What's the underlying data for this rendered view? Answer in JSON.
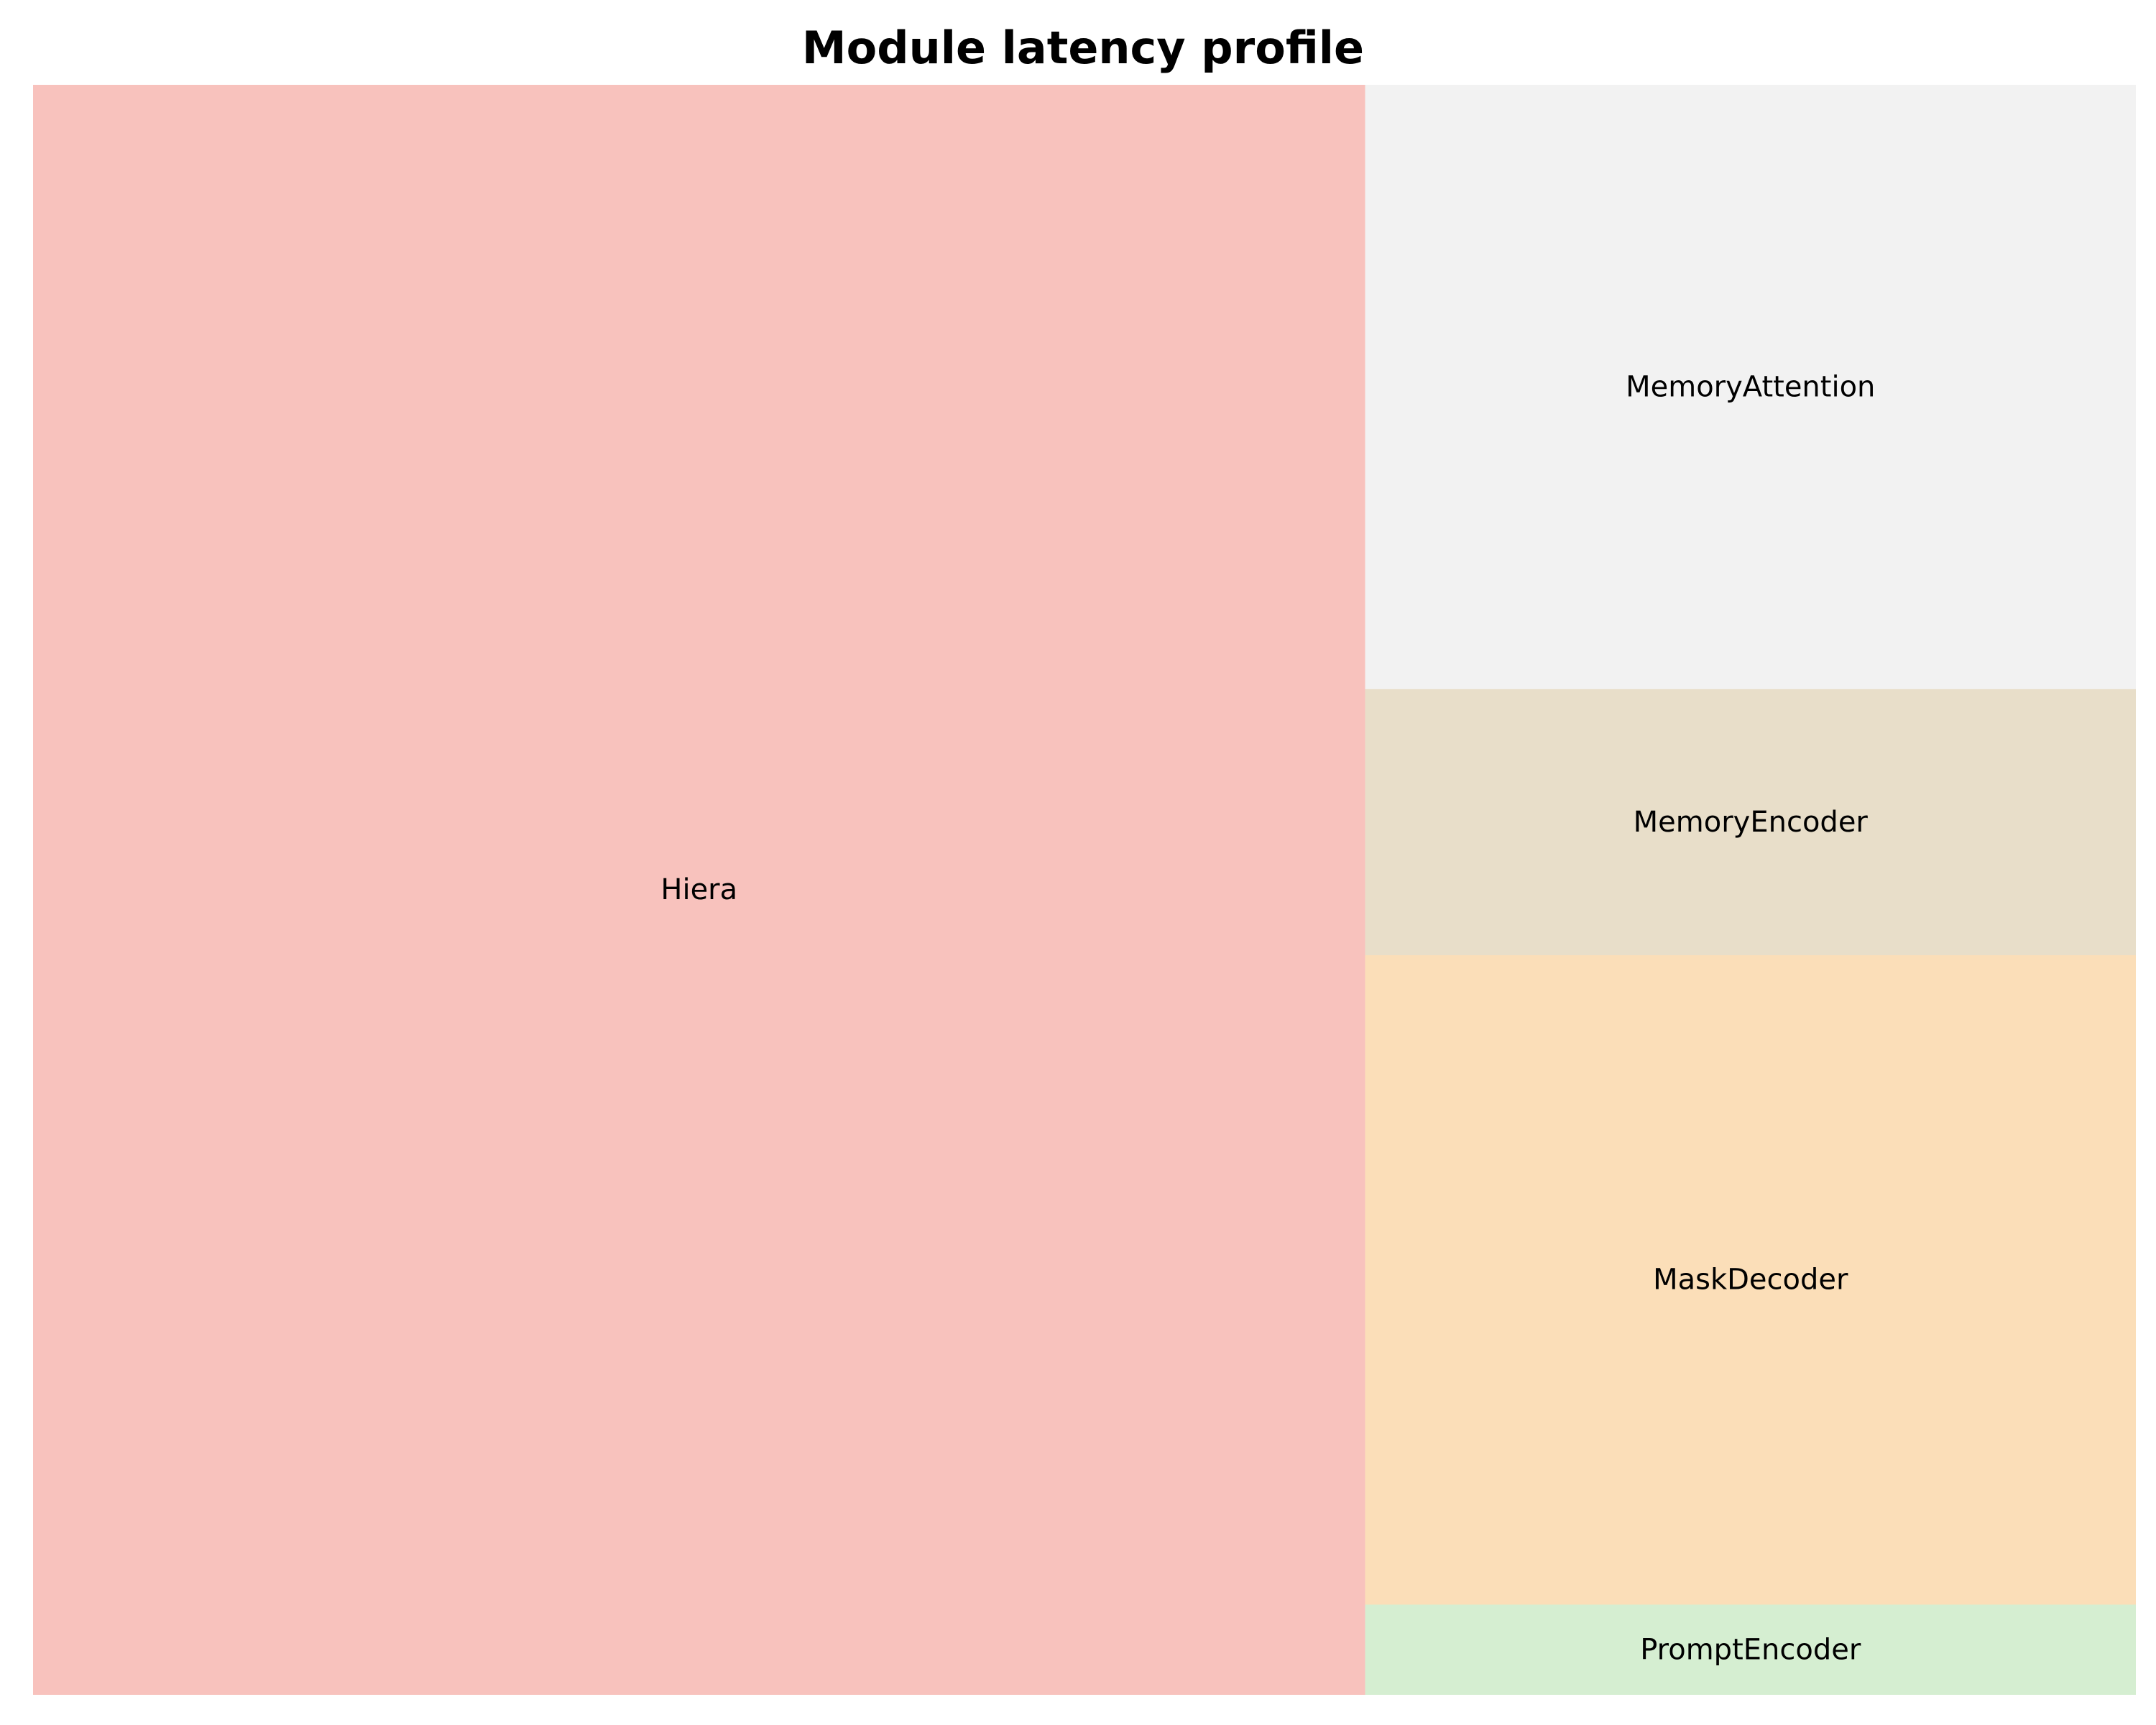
{
  "chart_data": {
    "type": "treemap",
    "title": "Module latency profile",
    "items": [
      {
        "label": "Hiera",
        "value": 61.7,
        "color": "#f8c2bd"
      },
      {
        "label": "MemoryAttention",
        "value": 13.4,
        "color": "#f2f2f2"
      },
      {
        "label": "MaskDecoder",
        "value": 14.4,
        "color": "#fbdeb8"
      },
      {
        "label": "MemoryEncoder",
        "value": 5.9,
        "color": "#e8dec9"
      },
      {
        "label": "PromptEncoder",
        "value": 2.0,
        "color": "#d5eed1"
      }
    ],
    "grid": false,
    "legend": "none"
  }
}
